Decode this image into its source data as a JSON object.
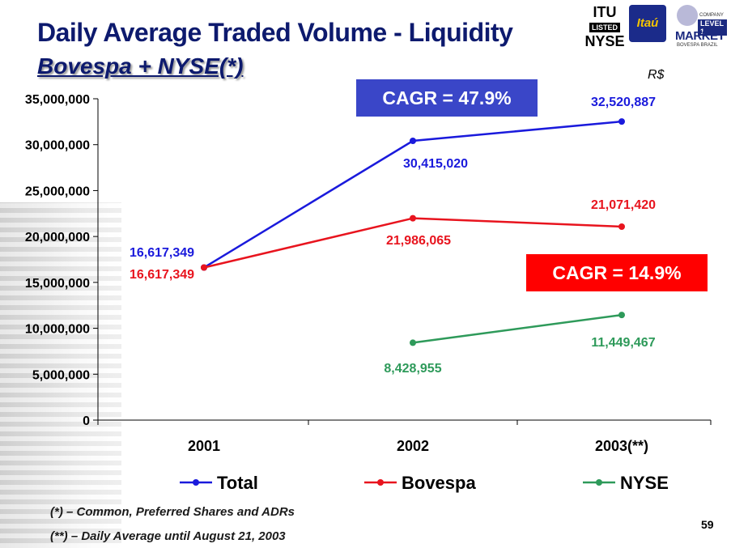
{
  "page": {
    "title": "Daily Average Traded Volume - Liquidity",
    "subtitle": "Bovespa + NYSE(*)",
    "unit": "R$",
    "cagr_total": "CAGR = 47.9%",
    "cagr_nyse": "CAGR = 14.9%",
    "note1": "(*) – Common, Preferred Shares and ADRs",
    "note2": "(**) – Daily Average until August 21, 2003",
    "page_number": "59",
    "logos": {
      "itu_top": "ITU",
      "itu_listed": "LISTED",
      "itu_bottom": "NYSE",
      "itau": "Itaú",
      "level_company": "COMPANY",
      "level_badge": "LEVEL 1",
      "level_market": "MARKET",
      "level_footer": "BOVESPA BRAZIL"
    }
  },
  "chart_data": {
    "type": "line",
    "categories": [
      "2001",
      "2002",
      "2003(**)"
    ],
    "ylim": [
      0,
      35000000
    ],
    "yticks": [
      "0",
      "5,000,000",
      "10,000,000",
      "15,000,000",
      "20,000,000",
      "25,000,000",
      "30,000,000",
      "35,000,000"
    ],
    "ytick_values": [
      0,
      5000000,
      10000000,
      15000000,
      20000000,
      25000000,
      30000000,
      35000000
    ],
    "legend_position": "bottom",
    "series": [
      {
        "name": "Total",
        "color": "#1a1adc",
        "values": [
          16617349,
          30415020,
          32520887
        ],
        "labels": [
          "16,617,349",
          "30,415,020",
          "32,520,887"
        ]
      },
      {
        "name": "Bovespa",
        "color": "#e8141e",
        "values": [
          16617349,
          21986065,
          21071420
        ],
        "labels": [
          "16,617,349",
          "21,986,065",
          "21,071,420"
        ]
      },
      {
        "name": "NYSE",
        "color": "#2e9a5a",
        "values": [
          null,
          8428955,
          11449467
        ],
        "labels": [
          "",
          "8,428,955",
          "11,449,467"
        ]
      }
    ]
  }
}
